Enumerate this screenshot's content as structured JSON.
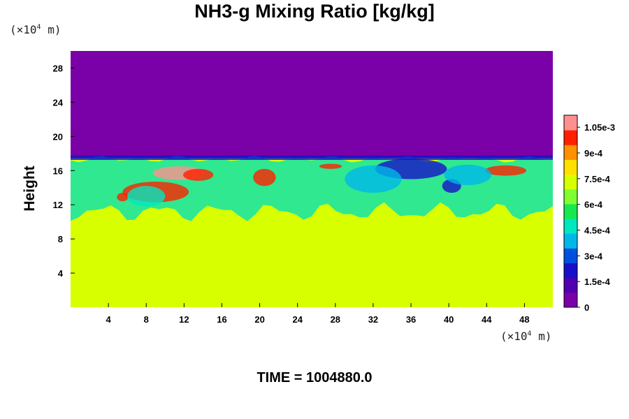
{
  "chart_data": {
    "type": "heatmap",
    "title": "NH3-g Mixing Ratio [kg/kg]",
    "ylabel": "Height",
    "xlabel": "",
    "x_unit": "(×10",
    "x_unit_exp": "4",
    "x_unit_tail": " m)",
    "y_unit": "(×10",
    "y_unit_exp": "4",
    "y_unit_tail": " m)",
    "xlim": [
      0,
      51
    ],
    "ylim": [
      0,
      30
    ],
    "xticks": [
      4,
      8,
      12,
      16,
      20,
      24,
      28,
      32,
      36,
      40,
      44,
      48
    ],
    "yticks": [
      4,
      8,
      12,
      16,
      20,
      24,
      28
    ],
    "colorbar": {
      "ticks": [
        "0",
        "1.5e-4",
        "3e-4",
        "4.5e-4",
        "6e-4",
        "7.5e-4",
        "9e-4",
        "1.05e-3"
      ],
      "tick_values": [
        0,
        0.00015,
        0.0003,
        0.00045,
        0.0006,
        0.00075,
        0.0009,
        0.00105
      ],
      "range": [
        0,
        0.00112
      ],
      "colors": [
        "#7a00a8",
        "#5000b0",
        "#1810c8",
        "#0050e0",
        "#00b8e8",
        "#00e8c0",
        "#18e850",
        "#80ff30",
        "#d8ff00",
        "#ffe000",
        "#ff9000",
        "#ff2000",
        "#ff9090"
      ]
    },
    "field": {
      "description_levels": {
        "lower_layer": 0.00079,
        "upper_layer": 0.0,
        "mixed_layer_typical": 0.00055
      },
      "boundaries": {
        "upper_layer_start_height": 17.5,
        "mixed_layer_bottom_height": 10.5
      }
    },
    "footer": "TIME = 1004880.0",
    "colors": {
      "upper": "#7a00a8",
      "lower": "#d8ff00",
      "mixed": "#30e890",
      "high": "#ff2000",
      "low_band": "#1810c8"
    }
  }
}
